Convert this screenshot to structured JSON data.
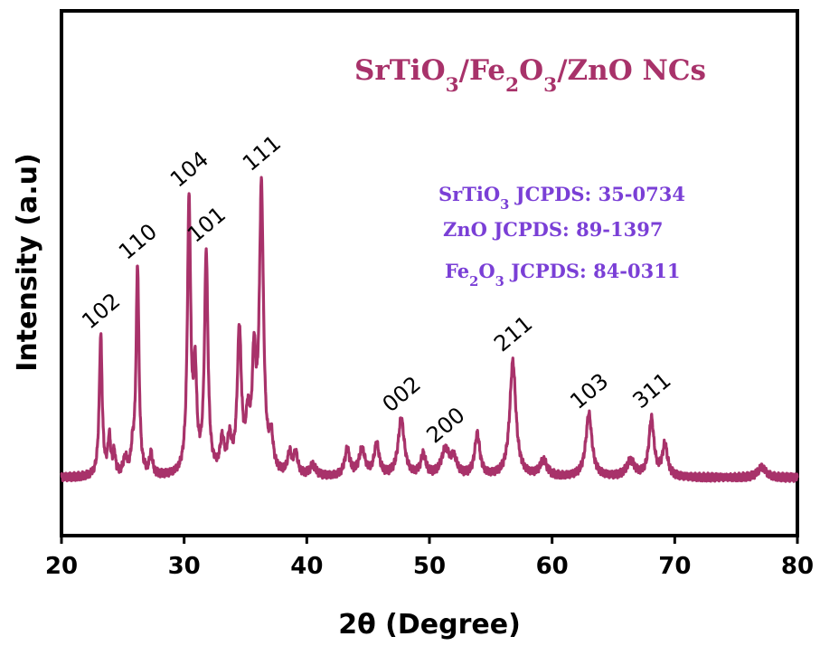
{
  "chart_data": {
    "type": "line",
    "title": "SrTiO3/Fe2O3/ZnO NCs",
    "title_parts": [
      "SrTiO",
      "3",
      "/Fe",
      "2",
      "O",
      "3",
      "/ZnO NCs"
    ],
    "xlabel": "2θ (Degree)",
    "ylabel": "Intensity (a.u)",
    "xlim": [
      20,
      80
    ],
    "ylim": [
      0,
      100
    ],
    "y_ticks_shown": false,
    "grid": false,
    "x_ticks": [
      20,
      30,
      40,
      50,
      60,
      70,
      80
    ],
    "x_tick_labels": [
      "20",
      "30",
      "40",
      "50",
      "60",
      "70",
      "80"
    ],
    "line_color": "#a8326a",
    "title_color": "#a8326a",
    "legend_color": "#7a3fd6",
    "reference_text": [
      {
        "parts": [
          "SrTiO",
          "3",
          " JCPDS: 35-0734"
        ]
      },
      {
        "parts": [
          "ZnO JCPDS: 89-1397"
        ]
      },
      {
        "parts": [
          "Fe",
          "2",
          "O",
          "3",
          " JCPDS: 84-0311"
        ]
      }
    ],
    "baseline": 11,
    "peaks": [
      {
        "x": 23.2,
        "height": 27,
        "width": 0.14,
        "label": "102"
      },
      {
        "x": 23.9,
        "height": 7,
        "width": 0.14,
        "label": ""
      },
      {
        "x": 24.3,
        "height": 4,
        "width": 0.12,
        "label": ""
      },
      {
        "x": 25.2,
        "height": 3,
        "width": 0.2,
        "label": ""
      },
      {
        "x": 25.8,
        "height": 4,
        "width": 0.15,
        "label": ""
      },
      {
        "x": 26.2,
        "height": 40,
        "width": 0.14,
        "label": "110"
      },
      {
        "x": 27.3,
        "height": 4,
        "width": 0.15,
        "label": ""
      },
      {
        "x": 30.4,
        "height": 52,
        "width": 0.16,
        "label": "104"
      },
      {
        "x": 30.9,
        "height": 18,
        "width": 0.15,
        "label": ""
      },
      {
        "x": 31.8,
        "height": 42,
        "width": 0.17,
        "label": "101"
      },
      {
        "x": 33.1,
        "height": 6,
        "width": 0.2,
        "label": ""
      },
      {
        "x": 33.7,
        "height": 6,
        "width": 0.2,
        "label": ""
      },
      {
        "x": 34.5,
        "height": 27,
        "width": 0.2,
        "label": ""
      },
      {
        "x": 35.2,
        "height": 9,
        "width": 0.2,
        "label": ""
      },
      {
        "x": 35.7,
        "height": 20,
        "width": 0.18,
        "label": ""
      },
      {
        "x": 36.3,
        "height": 54,
        "width": 0.2,
        "label": "111"
      },
      {
        "x": 37.1,
        "height": 6,
        "width": 0.2,
        "label": ""
      },
      {
        "x": 38.6,
        "height": 4,
        "width": 0.2,
        "label": ""
      },
      {
        "x": 39.1,
        "height": 4,
        "width": 0.2,
        "label": ""
      },
      {
        "x": 40.5,
        "height": 2,
        "width": 0.3,
        "label": ""
      },
      {
        "x": 43.3,
        "height": 5,
        "width": 0.25,
        "label": ""
      },
      {
        "x": 44.5,
        "height": 5,
        "width": 0.3,
        "label": ""
      },
      {
        "x": 45.7,
        "height": 6,
        "width": 0.25,
        "label": ""
      },
      {
        "x": 47.7,
        "height": 11,
        "width": 0.3,
        "label": "002"
      },
      {
        "x": 49.5,
        "height": 4,
        "width": 0.25,
        "label": ""
      },
      {
        "x": 51.3,
        "height": 5,
        "width": 0.4,
        "label": "200"
      },
      {
        "x": 52.0,
        "height": 3,
        "width": 0.3,
        "label": ""
      },
      {
        "x": 53.9,
        "height": 8,
        "width": 0.25,
        "label": ""
      },
      {
        "x": 56.8,
        "height": 22,
        "width": 0.3,
        "label": "211"
      },
      {
        "x": 59.3,
        "height": 3,
        "width": 0.35,
        "label": ""
      },
      {
        "x": 63.0,
        "height": 12,
        "width": 0.3,
        "label": "103"
      },
      {
        "x": 66.4,
        "height": 3,
        "width": 0.4,
        "label": ""
      },
      {
        "x": 68.1,
        "height": 11,
        "width": 0.25,
        "label": "311"
      },
      {
        "x": 69.2,
        "height": 6,
        "width": 0.25,
        "label": ""
      },
      {
        "x": 77.1,
        "height": 2,
        "width": 0.4,
        "label": ""
      }
    ]
  }
}
